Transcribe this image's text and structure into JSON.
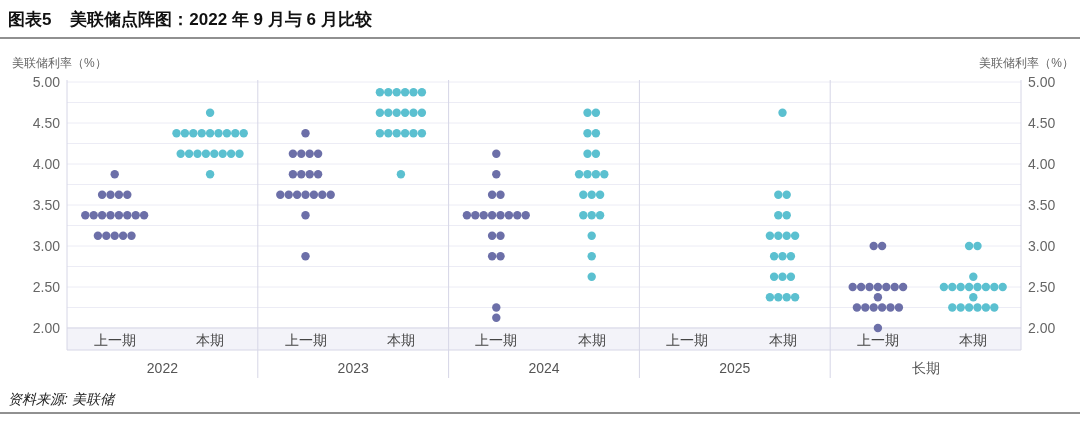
{
  "chart_data": [
    {
      "type": "scatter",
      "title": "图表5    美联储点阵图：2022 年 9 月与 6 月比较",
      "ylabel": "美联储利率（%）",
      "xlabel": "2022",
      "categories": [
        "上一期",
        "本期"
      ],
      "ylim": [
        2,
        5
      ],
      "yticks": [
        {
          "value": 2,
          "label": "2.00"
        },
        {
          "value": 2.25,
          "label": null
        },
        {
          "value": 2.5,
          "label": "2.50"
        },
        {
          "value": 2.75,
          "label": null
        },
        {
          "value": 3,
          "label": "3.00"
        },
        {
          "value": 3.25,
          "label": null
        },
        {
          "value": 3.5,
          "label": "3.50"
        },
        {
          "value": 3.75,
          "label": null
        },
        {
          "value": 4,
          "label": "4.00"
        },
        {
          "value": 4.25,
          "label": null
        },
        {
          "value": 4.5,
          "label": "4.50"
        },
        {
          "value": 4.75,
          "label": null
        },
        {
          "value": 5,
          "label": "5.00"
        }
      ],
      "grid": "y",
      "marker": "circle",
      "annotations": [
        "资料来源: 美联储"
      ],
      "series": [
        {
          "color": "#6c6fa8",
          "x": [
            "上一期",
            "上一期",
            "上一期",
            "上一期",
            "上一期",
            "上一期",
            "上一期",
            "上一期",
            "上一期",
            "上一期",
            "上一期",
            "上一期",
            "上一期",
            "上一期",
            "上一期",
            "上一期",
            "上一期",
            "上一期"
          ],
          "values": [
            3.875,
            3.625,
            3.625,
            3.625,
            3.625,
            3.375,
            3.375,
            3.375,
            3.375,
            3.375,
            3.375,
            3.375,
            3.375,
            3.125,
            3.125,
            3.125,
            3.125,
            3.125
          ]
        },
        {
          "color": "#5bc0d0",
          "x": [
            "本期",
            "本期",
            "本期",
            "本期",
            "本期",
            "本期",
            "本期",
            "本期",
            "本期",
            "本期",
            "本期",
            "本期",
            "本期",
            "本期",
            "本期",
            "本期",
            "本期",
            "本期",
            "本期"
          ],
          "values": [
            4.625,
            4.375,
            4.375,
            4.375,
            4.375,
            4.375,
            4.375,
            4.375,
            4.375,
            4.375,
            4.125,
            4.125,
            4.125,
            4.125,
            4.125,
            4.125,
            4.125,
            4.125,
            3.875
          ]
        }
      ]
    },
    {
      "type": "scatter",
      "xlabel": "2023",
      "categories": [
        "上一期",
        "本期"
      ],
      "ylim": [
        2,
        5
      ],
      "yticks": [
        2,
        2.25,
        2.5,
        2.75,
        3,
        3.25,
        3.5,
        3.75,
        4,
        4.25,
        4.5,
        4.75,
        5
      ],
      "grid": "y",
      "marker": "circle",
      "tick_labels": "x",
      "series": [
        {
          "color": "#6c6fa8",
          "x": [
            "上一期",
            "上一期",
            "上一期",
            "上一期",
            "上一期",
            "上一期",
            "上一期",
            "上一期",
            "上一期",
            "上一期",
            "上一期",
            "上一期",
            "上一期",
            "上一期",
            "上一期",
            "上一期",
            "上一期",
            "上一期"
          ],
          "values": [
            4.375,
            4.125,
            4.125,
            4.125,
            4.125,
            3.875,
            3.875,
            3.875,
            3.875,
            3.625,
            3.625,
            3.625,
            3.625,
            3.625,
            3.625,
            3.625,
            3.375,
            2.875
          ]
        },
        {
          "color": "#5bc0d0",
          "x": [
            "本期",
            "本期",
            "本期",
            "本期",
            "本期",
            "本期",
            "本期",
            "本期",
            "本期",
            "本期",
            "本期",
            "本期",
            "本期",
            "本期",
            "本期",
            "本期",
            "本期",
            "本期",
            "本期"
          ],
          "values": [
            4.875,
            4.875,
            4.875,
            4.875,
            4.875,
            4.875,
            4.625,
            4.625,
            4.625,
            4.625,
            4.625,
            4.625,
            4.375,
            4.375,
            4.375,
            4.375,
            4.375,
            4.375,
            3.875
          ]
        }
      ]
    },
    {
      "type": "scatter",
      "xlabel": "2024",
      "categories": [
        "上一期",
        "本期"
      ],
      "ylim": [
        2,
        5
      ],
      "yticks": [
        2,
        2.25,
        2.5,
        2.75,
        3,
        3.25,
        3.5,
        3.75,
        4,
        4.25,
        4.5,
        4.75,
        5
      ],
      "grid": "y",
      "marker": "circle",
      "tick_labels": "x",
      "series": [
        {
          "color": "#6c6fa8",
          "x": [
            "上一期",
            "上一期",
            "上一期",
            "上一期",
            "上一期",
            "上一期",
            "上一期",
            "上一期",
            "上一期",
            "上一期",
            "上一期",
            "上一期",
            "上一期",
            "上一期",
            "上一期",
            "上一期",
            "上一期",
            "上一期"
          ],
          "values": [
            4.125,
            3.875,
            3.625,
            3.625,
            3.375,
            3.375,
            3.375,
            3.375,
            3.375,
            3.375,
            3.375,
            3.375,
            3.125,
            3.125,
            2.875,
            2.875,
            2.25,
            2.125
          ]
        },
        {
          "color": "#5bc0d0",
          "x": [
            "本期",
            "本期",
            "本期",
            "本期",
            "本期",
            "本期",
            "本期",
            "本期",
            "本期",
            "本期",
            "本期",
            "本期",
            "本期",
            "本期",
            "本期",
            "本期",
            "本期",
            "本期",
            "本期"
          ],
          "values": [
            4.625,
            4.625,
            4.375,
            4.375,
            4.125,
            4.125,
            3.875,
            3.875,
            3.875,
            3.875,
            3.625,
            3.625,
            3.625,
            3.375,
            3.375,
            3.375,
            3.125,
            2.875,
            2.625
          ]
        }
      ]
    },
    {
      "type": "scatter",
      "xlabel": "2025",
      "categories": [
        "上一期",
        "本期"
      ],
      "ylim": [
        2,
        5
      ],
      "yticks": [
        2,
        2.25,
        2.5,
        2.75,
        3,
        3.25,
        3.5,
        3.75,
        4,
        4.25,
        4.5,
        4.75,
        5
      ],
      "grid": "y",
      "marker": "circle",
      "tick_labels": "x",
      "series": [
        {
          "color": "#5bc0d0",
          "x": [
            "本期",
            "本期",
            "本期",
            "本期",
            "本期",
            "本期",
            "本期",
            "本期",
            "本期",
            "本期",
            "本期",
            "本期",
            "本期",
            "本期",
            "本期",
            "本期",
            "本期",
            "本期",
            "本期"
          ],
          "values": [
            4.625,
            3.625,
            3.625,
            3.375,
            3.375,
            3.125,
            3.125,
            3.125,
            3.125,
            2.875,
            2.875,
            2.875,
            2.625,
            2.625,
            2.625,
            2.375,
            2.375,
            2.375,
            2.375
          ]
        }
      ]
    },
    {
      "type": "scatter",
      "xlabel": "长期",
      "categories": [
        "上一期",
        "本期"
      ],
      "ylim": [
        2,
        5
      ],
      "grid": "y",
      "marker": "circle",
      "y2label": "美联储利率（%）",
      "y2lim": [
        2,
        5
      ],
      "y2ticks": [
        {
          "value": 2,
          "label": "2.00"
        },
        {
          "value": 2.25,
          "label": null
        },
        {
          "value": 2.5,
          "label": "2.50"
        },
        {
          "value": 2.75,
          "label": null
        },
        {
          "value": 3,
          "label": "3.00"
        },
        {
          "value": 3.25,
          "label": null
        },
        {
          "value": 3.5,
          "label": "3.50"
        },
        {
          "value": 3.75,
          "label": null
        },
        {
          "value": 4,
          "label": "4.00"
        },
        {
          "value": 4.25,
          "label": null
        },
        {
          "value": 4.5,
          "label": "4.50"
        },
        {
          "value": 4.75,
          "label": null
        },
        {
          "value": 5,
          "label": "5.00"
        }
      ],
      "series": [
        {
          "color": "#6c6fa8",
          "x": [
            "上一期",
            "上一期",
            "上一期",
            "上一期",
            "上一期",
            "上一期",
            "上一期",
            "上一期",
            "上一期",
            "上一期",
            "上一期",
            "上一期",
            "上一期",
            "上一期",
            "上一期",
            "上一期",
            "上一期"
          ],
          "values": [
            3,
            3,
            2.5,
            2.5,
            2.5,
            2.5,
            2.5,
            2.5,
            2.5,
            2.375,
            2.25,
            2.25,
            2.25,
            2.25,
            2.25,
            2.25,
            2
          ]
        },
        {
          "color": "#5bc0d0",
          "x": [
            "本期",
            "本期",
            "本期",
            "本期",
            "本期",
            "本期",
            "本期",
            "本期",
            "本期",
            "本期",
            "本期",
            "本期",
            "本期",
            "本期",
            "本期",
            "本期",
            "本期",
            "本期"
          ],
          "values": [
            3,
            3,
            2.625,
            2.5,
            2.5,
            2.5,
            2.5,
            2.5,
            2.5,
            2.5,
            2.5,
            2.375,
            2.25,
            2.25,
            2.25,
            2.25,
            2.25,
            2.25
          ]
        }
      ]
    }
  ]
}
